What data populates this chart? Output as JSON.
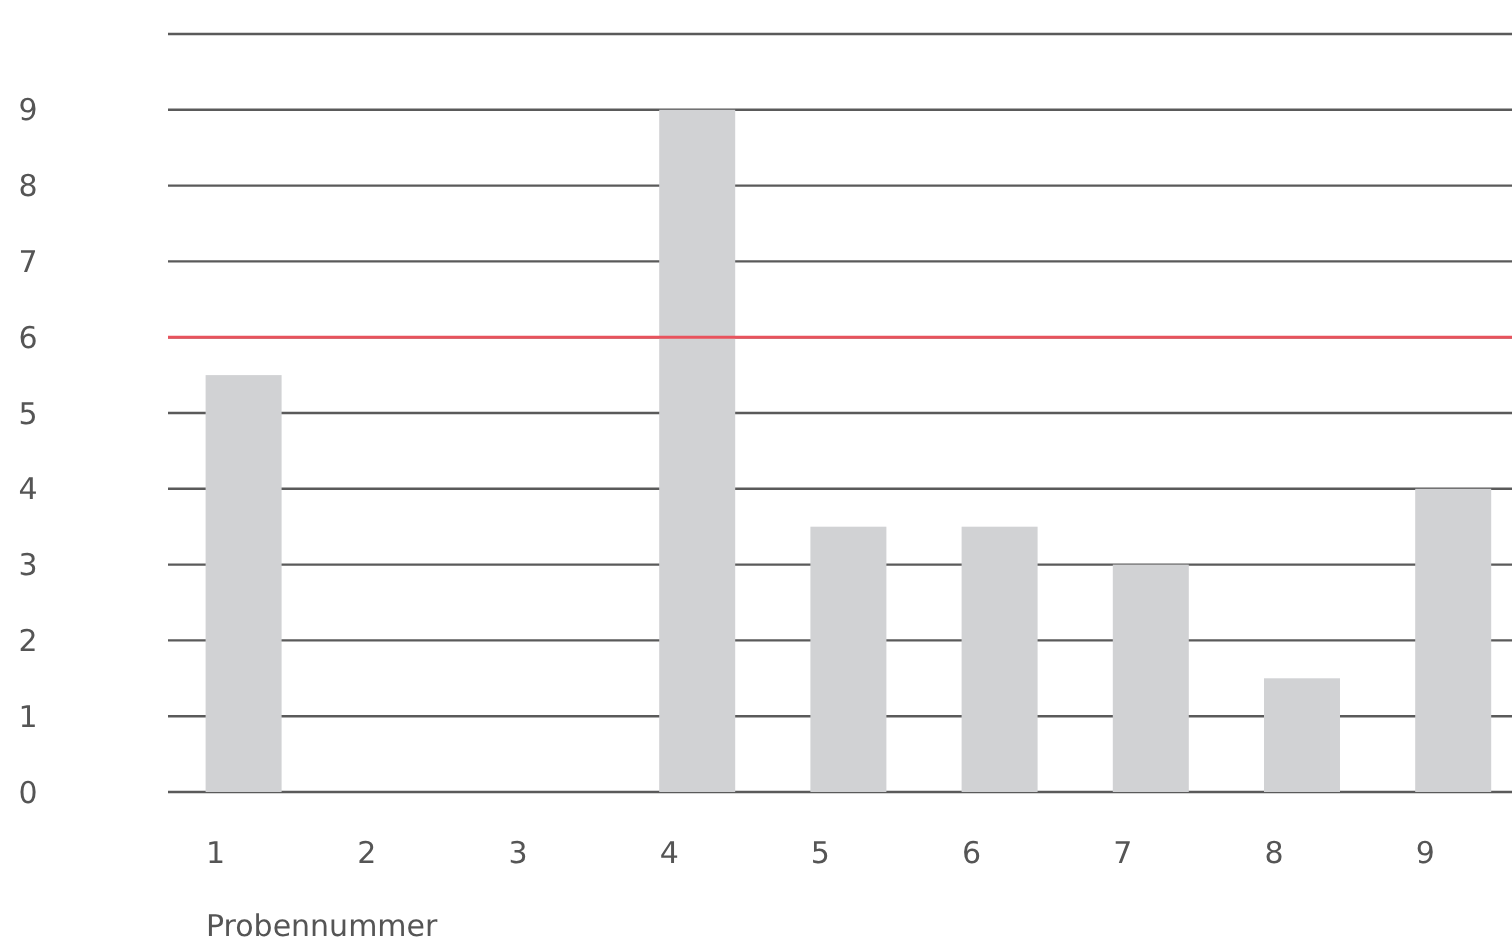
{
  "chart_data": {
    "type": "bar",
    "xlabel": "Probennummer",
    "categories": [
      "1",
      "2",
      "3",
      "4",
      "5",
      "6",
      "7",
      "8",
      "9"
    ],
    "values": [
      5.5,
      0,
      0,
      9,
      3.5,
      3.5,
      3,
      1.5,
      4
    ],
    "color": "#d1d2d4",
    "ylim": [
      0,
      10
    ],
    "yticks": [
      0,
      1,
      2,
      3,
      4,
      5,
      6,
      7,
      8,
      9,
      {
        "value": 10,
        "label": null
      }
    ],
    "grid": "y",
    "ref_lines": [
      {
        "axis": "y",
        "value": 6,
        "color": "#e8535d"
      }
    ]
  }
}
